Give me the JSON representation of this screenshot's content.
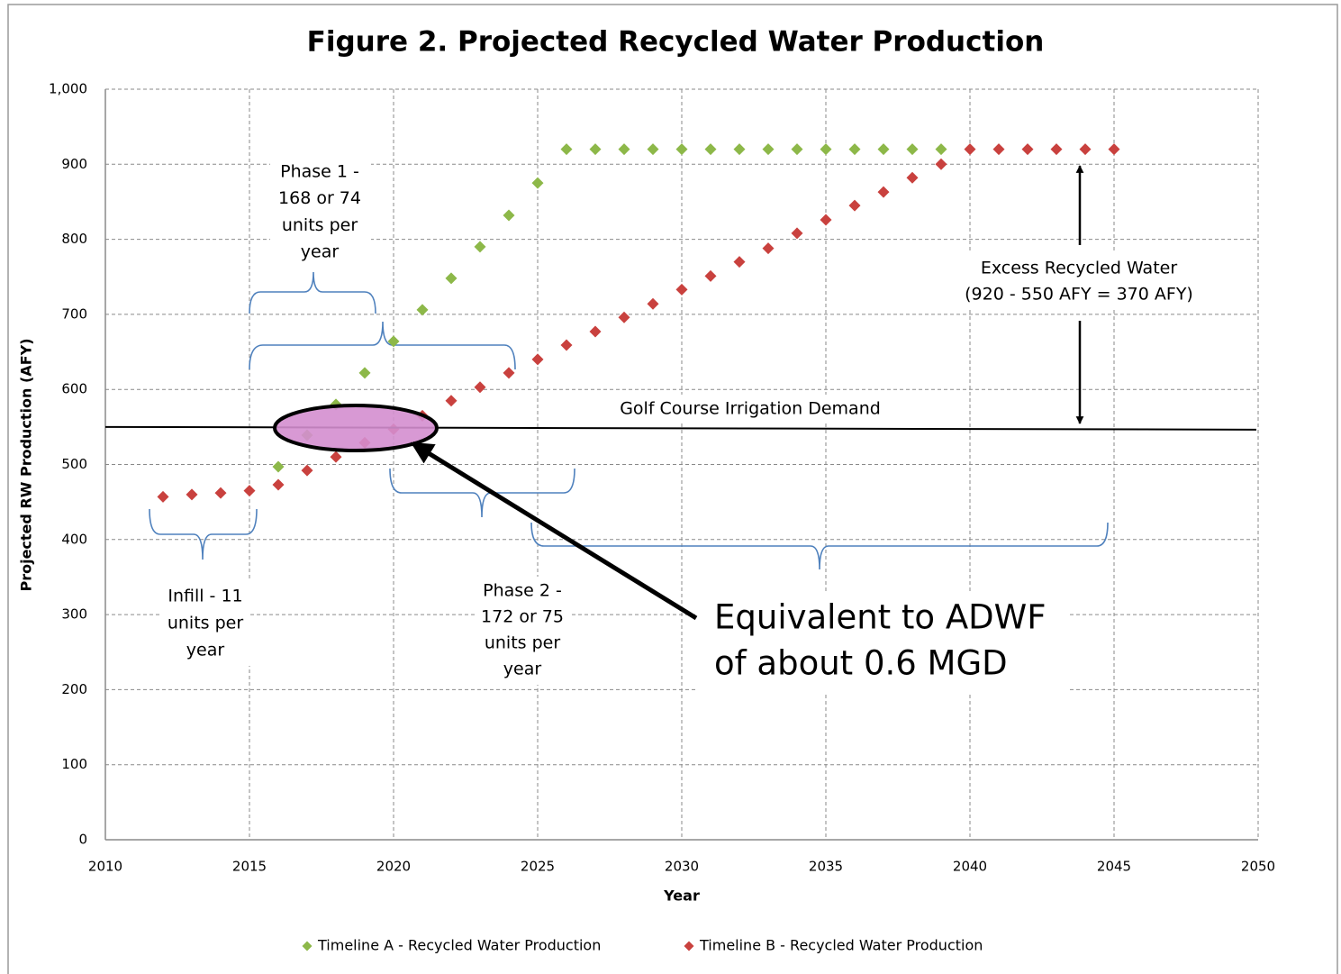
{
  "chart_data": {
    "type": "scatter",
    "title": "Figure 2. Projected Recycled Water Production",
    "x_label": "Year",
    "y_label": "Projected RW Production (AFY)",
    "xlim": [
      2010,
      2050
    ],
    "xticks": [
      2010,
      2015,
      2020,
      2025,
      2030,
      2035,
      2040,
      2045,
      2050
    ],
    "ylim": [
      0,
      1000
    ],
    "yticks": [
      0,
      100,
      200,
      300,
      400,
      500,
      600,
      700,
      800,
      900,
      {
        "value": 1000,
        "label": "1,000"
      }
    ],
    "grid": true,
    "legend": "bottom",
    "series": [
      {
        "name": "Timeline A - Recycled Water Production",
        "color": "#8db849",
        "x": [
          2016,
          2017,
          2018,
          2019,
          2020,
          2021,
          2022,
          2023,
          2024,
          2025,
          2026,
          2027,
          2028,
          2029,
          2030,
          2031,
          2032,
          2033,
          2034,
          2035,
          2036,
          2037,
          2038,
          2039
        ],
        "values": [
          497,
          539,
          580,
          622,
          664,
          706,
          748,
          790,
          832,
          875,
          920,
          920,
          920,
          920,
          920,
          920,
          920,
          920,
          920,
          920,
          920,
          920,
          920,
          920
        ]
      },
      {
        "name": "Timeline B - Recycled Water Production",
        "color": "#c9413e",
        "x": [
          2012,
          2013,
          2014,
          2015,
          2016,
          2017,
          2018,
          2019,
          2020,
          2021,
          2022,
          2023,
          2024,
          2025,
          2026,
          2027,
          2028,
          2029,
          2030,
          2031,
          2032,
          2033,
          2034,
          2035,
          2036,
          2037,
          2038,
          2039,
          2040,
          2041,
          2042,
          2043,
          2044,
          2045
        ],
        "values": [
          457,
          460,
          462,
          465,
          473,
          492,
          510,
          529,
          547,
          565,
          585,
          603,
          622,
          640,
          659,
          677,
          696,
          714,
          733,
          751,
          770,
          788,
          808,
          826,
          845,
          863,
          882,
          900,
          920,
          920,
          920,
          920,
          920,
          920
        ]
      }
    ],
    "reference_line": {
      "label": "Golf Course Irrigation Demand",
      "value": 550
    },
    "annotations": {
      "phase1": [
        "Phase 1 -",
        "168 or 74",
        "units per",
        "year"
      ],
      "infill": [
        "Infill - 11",
        "units per",
        "year"
      ],
      "phase2": [
        "Phase 2 -",
        "172 or 75",
        "units per",
        "year"
      ],
      "excess": [
        "Excess Recycled Water",
        "(920 - 550 AFY = 370 AFY)"
      ],
      "callout": [
        "Equivalent to ADWF",
        "of about 0.6 MGD"
      ]
    }
  }
}
